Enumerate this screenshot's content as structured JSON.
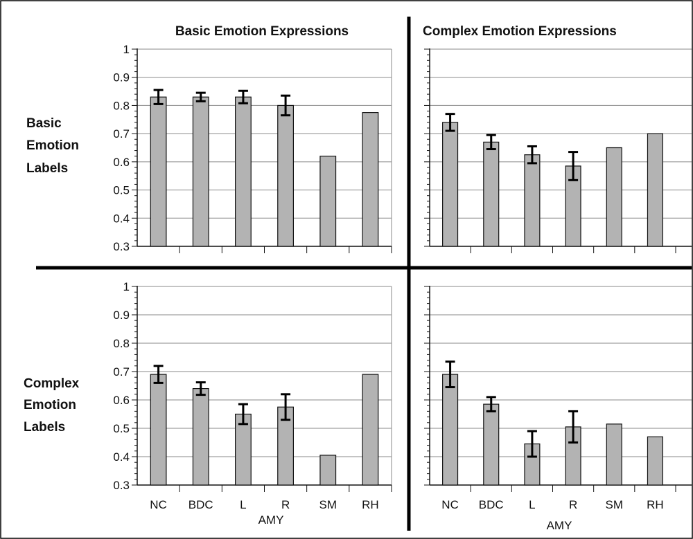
{
  "figure": {
    "column_titles": [
      "Basic Emotion Expressions",
      "Complex Emotion Expressions"
    ],
    "row_labels": [
      [
        "Basic",
        "Emotion",
        "Labels"
      ],
      [
        "Complex",
        "Emotion",
        "Labels"
      ]
    ],
    "group_label": "AMY"
  },
  "colors": {
    "bar_fill": "#b3b3b3",
    "bar_stroke": "#111111",
    "grid": "#8a8a8a",
    "axis": "#111111",
    "divider": "#000000"
  },
  "chart_data": [
    {
      "type": "bar",
      "row": "Basic Emotion Labels",
      "column": "Basic Emotion Expressions",
      "categories": [
        "NC",
        "BDC",
        "L",
        "R",
        "SM",
        "RH"
      ],
      "values": [
        0.83,
        0.83,
        0.83,
        0.8,
        0.62,
        0.775
      ],
      "error": [
        0.025,
        0.015,
        0.022,
        0.035,
        null,
        null
      ],
      "ylim": [
        0.3,
        1.0
      ],
      "yticks": [
        "0.3",
        "0.4",
        "0.5",
        "0.6",
        "0.7",
        "0.8",
        "0.9",
        "1"
      ],
      "grid": true
    },
    {
      "type": "bar",
      "row": "Basic Emotion Labels",
      "column": "Complex Emotion Expressions",
      "categories": [
        "NC",
        "BDC",
        "L",
        "R",
        "SM",
        "RH"
      ],
      "values": [
        0.74,
        0.67,
        0.625,
        0.585,
        0.65,
        0.7
      ],
      "error": [
        0.03,
        0.025,
        0.03,
        0.05,
        null,
        null
      ],
      "ylim": [
        0.3,
        1.0
      ],
      "grid": true
    },
    {
      "type": "bar",
      "row": "Complex Emotion Labels",
      "column": "Basic Emotion Expressions",
      "categories": [
        "NC",
        "BDC",
        "L",
        "R",
        "SM",
        "RH"
      ],
      "values": [
        0.69,
        0.64,
        0.55,
        0.575,
        0.405,
        0.69
      ],
      "error": [
        0.03,
        0.022,
        0.035,
        0.045,
        null,
        null
      ],
      "ylim": [
        0.3,
        1.0
      ],
      "yticks": [
        "0.3",
        "0.4",
        "0.5",
        "0.6",
        "0.7",
        "0.8",
        "0.9",
        "1"
      ],
      "grid": true
    },
    {
      "type": "bar",
      "row": "Complex Emotion Labels",
      "column": "Complex Emotion Expressions",
      "categories": [
        "NC",
        "BDC",
        "L",
        "R",
        "SM",
        "RH"
      ],
      "values": [
        0.69,
        0.585,
        0.445,
        0.505,
        0.515,
        0.47
      ],
      "error": [
        0.045,
        0.025,
        0.045,
        0.055,
        null,
        null
      ],
      "ylim": [
        0.3,
        1.0
      ],
      "grid": true
    }
  ]
}
